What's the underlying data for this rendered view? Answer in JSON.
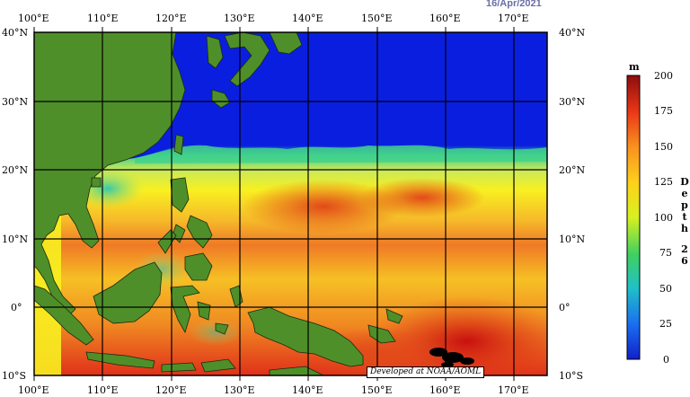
{
  "header": {
    "date": "16/Apr/2021"
  },
  "map": {
    "lon_labels": [
      "100°E",
      "110°E",
      "120°E",
      "130°E",
      "140°E",
      "150°E",
      "160°E",
      "170°E"
    ],
    "lat_labels_left": [
      "40°N",
      "30°N",
      "20°N",
      "10°N",
      "0°",
      "10°S"
    ],
    "lat_labels_right": [
      "40°N",
      "30°N",
      "20°N",
      "10°N",
      "0°",
      "10°S"
    ],
    "credit": "Developed at NOAA/AOML",
    "land_color": "#4f8f2a",
    "ocean_shallow_color": "#0a1ee0"
  },
  "colorbar": {
    "unit": "m",
    "ticks": [
      "200",
      "175",
      "150",
      "125",
      "100",
      "75",
      "50",
      "25",
      "0"
    ],
    "title_chars": [
      "D",
      "e",
      "p",
      "t",
      "h",
      "",
      "2",
      "6"
    ],
    "range": [
      0,
      200
    ]
  }
}
